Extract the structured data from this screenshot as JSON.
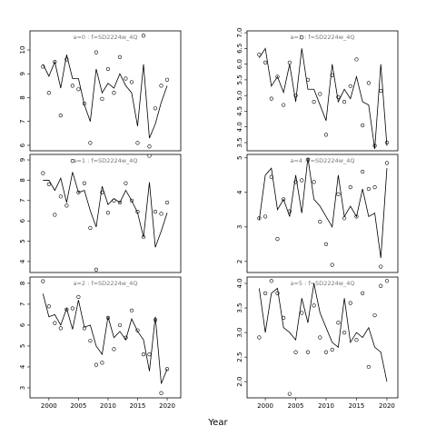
{
  "xlabel": "Year",
  "chart_data": [
    {
      "type": "line",
      "title": "a=0  :  f=SD2224w_4Q",
      "x": [
        1999,
        2000,
        2001,
        2002,
        2003,
        2004,
        2005,
        2006,
        2007,
        2008,
        2009,
        2010,
        2011,
        2012,
        2013,
        2014,
        2015,
        2016,
        2017,
        2018,
        2019,
        2020
      ],
      "xlim": [
        1996.8,
        2022.3
      ],
      "ylim": [
        5.77,
        10.8
      ],
      "yticks": [
        6,
        7,
        8,
        9,
        10
      ],
      "series": [
        {
          "style": "points",
          "color": "#000000",
          "values": [
            9.3,
            8.2,
            9.5,
            7.25,
            9.6,
            8.5,
            8.35,
            7.75,
            6.1,
            9.9,
            7.95,
            9.2,
            8.2,
            9.7,
            8.8,
            8.65,
            6.1,
            10.6,
            5.95,
            7.55,
            8.5,
            8.75
          ]
        },
        {
          "style": "line",
          "color": "#000000",
          "values": [
            9.4,
            8.9,
            9.5,
            8.4,
            9.8,
            8.8,
            8.8,
            7.7,
            7.0,
            9.2,
            8.2,
            8.6,
            8.4,
            9.0,
            8.5,
            8.2,
            6.8,
            9.4,
            6.3,
            6.9,
            7.8,
            8.5
          ]
        }
      ]
    },
    {
      "type": "line",
      "title": "a=1  :  f=SD2224w_4Q",
      "x": [
        1999,
        2000,
        2001,
        2002,
        2003,
        2004,
        2005,
        2006,
        2007,
        2008,
        2009,
        2010,
        2011,
        2012,
        2013,
        2014,
        2015,
        2016,
        2017,
        2018,
        2019,
        2020
      ],
      "xlim": [
        1996.8,
        2022.3
      ],
      "ylim": [
        3.46,
        9.27
      ],
      "yticks": [
        4,
        5,
        6,
        7,
        8,
        9
      ],
      "series": [
        {
          "style": "points",
          "color": "#000000",
          "values": [
            8.35,
            7.8,
            6.3,
            7.2,
            6.75,
            8.95,
            7.4,
            7.85,
            5.65,
            3.6,
            7.4,
            6.4,
            7.0,
            6.9,
            7.85,
            7.0,
            6.45,
            5.2,
            9.2,
            6.45,
            6.35,
            6.9
          ]
        },
        {
          "style": "line",
          "color": "#000000",
          "values": [
            8.0,
            8.0,
            7.5,
            8.1,
            6.9,
            8.4,
            7.4,
            7.5,
            6.5,
            5.7,
            7.7,
            6.8,
            7.1,
            6.9,
            7.5,
            7.0,
            6.4,
            5.2,
            7.9,
            4.7,
            5.5,
            6.4
          ]
        }
      ]
    },
    {
      "type": "line",
      "title": "a=2  :  f=SD2224w_4Q",
      "x": [
        1999,
        2000,
        2001,
        2002,
        2003,
        2004,
        2005,
        2006,
        2007,
        2008,
        2009,
        2010,
        2011,
        2012,
        2013,
        2014,
        2015,
        2016,
        2017,
        2018,
        2019,
        2020
      ],
      "xlim": [
        1996.8,
        2022.3
      ],
      "xticks": [
        2000,
        2005,
        2010,
        2015,
        2020
      ],
      "ylim": [
        2.52,
        8.3
      ],
      "yticks": [
        3,
        4,
        5,
        6,
        7,
        8
      ],
      "series": [
        {
          "style": "points",
          "color": "#000000",
          "values": [
            8.1,
            6.9,
            6.1,
            5.85,
            6.75,
            6.8,
            7.35,
            5.85,
            5.25,
            4.1,
            4.2,
            6.35,
            4.85,
            6.0,
            5.4,
            6.7,
            5.75,
            4.6,
            4.6,
            6.25,
            2.75,
            3.9
          ]
        },
        {
          "style": "line",
          "color": "#000000",
          "values": [
            7.5,
            6.4,
            6.5,
            6.0,
            6.8,
            5.8,
            7.2,
            5.9,
            6.0,
            5.0,
            4.6,
            6.4,
            5.4,
            5.7,
            5.3,
            6.3,
            5.7,
            5.3,
            3.8,
            6.4,
            3.2,
            3.9
          ]
        }
      ]
    },
    {
      "type": "line",
      "title": "a=3  :  f=SD2224w_4Q",
      "x": [
        1999,
        2000,
        2001,
        2002,
        2003,
        2004,
        2005,
        2006,
        2007,
        2008,
        2009,
        2010,
        2011,
        2012,
        2013,
        2014,
        2015,
        2016,
        2017,
        2018,
        2019,
        2020
      ],
      "xlim": [
        1997,
        2021.8
      ],
      "ylim": [
        3.24,
        7.06
      ],
      "yticks": [
        3.5,
        {
          "value": 4,
          "label": "4.0"
        },
        4.5,
        {
          "value": 5,
          "label": "5.0"
        },
        5.5,
        {
          "value": 6,
          "label": "6.0"
        },
        6.5,
        {
          "value": 7,
          "label": "7.0"
        }
      ],
      "series": [
        {
          "style": "points",
          "color": "#000000",
          "values": [
            6.3,
            6.05,
            4.9,
            5.6,
            4.7,
            6.05,
            5.0,
            6.85,
            5.5,
            4.8,
            5.05,
            3.75,
            5.65,
            4.95,
            4.8,
            5.3,
            6.15,
            4.05,
            5.4,
            3.4,
            5.15,
            3.5
          ]
        },
        {
          "style": "line",
          "color": "#000000",
          "values": [
            6.2,
            6.5,
            5.3,
            5.6,
            5.1,
            6.0,
            4.8,
            6.5,
            5.2,
            5.2,
            4.7,
            4.2,
            6.0,
            4.8,
            5.2,
            4.9,
            5.6,
            4.8,
            4.7,
            3.3,
            6.0,
            3.4
          ]
        }
      ]
    },
    {
      "type": "line",
      "title": "a=4  :  f=SD2224w_4Q",
      "x": [
        1999,
        2000,
        2001,
        2002,
        2003,
        2004,
        2005,
        2006,
        2007,
        2008,
        2009,
        2010,
        2011,
        2012,
        2013,
        2014,
        2015,
        2016,
        2017,
        2018,
        2019,
        2020
      ],
      "xlim": [
        1997,
        2021.8
      ],
      "ylim": [
        1.68,
        5.1
      ],
      "yticks": [
        2,
        3,
        4,
        5
      ],
      "series": [
        {
          "style": "points",
          "color": "#000000",
          "values": [
            3.25,
            3.3,
            4.45,
            2.65,
            3.8,
            3.45,
            4.3,
            4.35,
            4.95,
            4.3,
            3.15,
            2.5,
            1.9,
            3.95,
            3.25,
            4.15,
            3.3,
            4.6,
            4.1,
            4.15,
            1.85,
            4.85
          ]
        },
        {
          "style": "line",
          "color": "#000000",
          "values": [
            3.2,
            4.5,
            4.7,
            3.5,
            3.8,
            3.3,
            4.5,
            3.4,
            5.0,
            3.8,
            3.6,
            3.3,
            3.0,
            4.5,
            3.3,
            3.6,
            3.3,
            4.1,
            3.3,
            3.4,
            2.1,
            4.7
          ]
        }
      ]
    },
    {
      "type": "line",
      "title": "a=5  :  f=SD2224w_4Q",
      "x": [
        1999,
        2000,
        2001,
        2002,
        2003,
        2004,
        2005,
        2006,
        2007,
        2008,
        2009,
        2010,
        2011,
        2012,
        2013,
        2014,
        2015,
        2016,
        2017,
        2018,
        2019,
        2020
      ],
      "xlim": [
        1997,
        2021.8
      ],
      "xticks": [
        2000,
        2005,
        2010,
        2015,
        2020
      ],
      "ylim": [
        1.67,
        4.13
      ],
      "yticks": [
        {
          "value": 2,
          "label": "2.0"
        },
        2.5,
        {
          "value": 3,
          "label": "3.0"
        },
        3.5,
        {
          "value": 4,
          "label": "4.0"
        }
      ],
      "series": [
        {
          "style": "points",
          "color": "#000000",
          "values": [
            2.9,
            3.8,
            4.05,
            3.8,
            3.3,
            1.75,
            2.6,
            3.4,
            2.6,
            3.55,
            2.9,
            2.6,
            2.65,
            3.2,
            3.0,
            3.6,
            2.85,
            3.8,
            2.3,
            3.35,
            3.95,
            4.05
          ]
        },
        {
          "style": "line",
          "color": "#000000",
          "values": [
            3.9,
            3.0,
            3.8,
            3.9,
            3.1,
            3.0,
            2.85,
            3.7,
            3.2,
            4.0,
            3.4,
            3.1,
            2.8,
            2.7,
            3.7,
            2.8,
            3.0,
            2.9,
            3.1,
            2.7,
            2.6,
            2.0
          ]
        }
      ]
    }
  ]
}
